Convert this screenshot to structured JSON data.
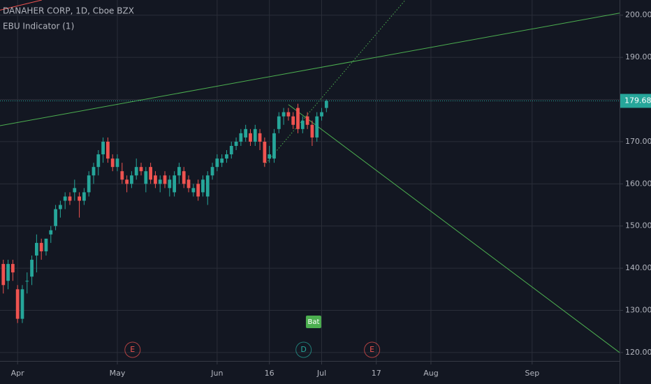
{
  "chart_data": {
    "type": "candlestick",
    "title": "DANAHER CORP, 1D, Cboe BZX",
    "subtitle": "EBU Indicator (1)",
    "up_color": "#26a69a",
    "down_color": "#ef5350",
    "grid": true,
    "ylim": [
      118.0,
      203.6
    ],
    "yticks": [
      {
        "value": 120,
        "label": "120.00"
      },
      {
        "value": 130,
        "label": "130.00"
      },
      {
        "value": 140,
        "label": "140.00"
      },
      {
        "value": 150,
        "label": "150.00"
      },
      {
        "value": 160,
        "label": "160.00"
      },
      {
        "value": 170,
        "label": "170.00"
      },
      {
        "value": 180,
        "label": "180.00"
      },
      {
        "value": 190,
        "label": "190.00"
      },
      {
        "value": 200,
        "label": "200.00"
      }
    ],
    "xlim": [
      -0.7,
      129.7
    ],
    "xticks": [
      {
        "value": 3,
        "label": "Apr"
      },
      {
        "value": 24,
        "label": "May"
      },
      {
        "value": 45,
        "label": "Jun"
      },
      {
        "value": 56,
        "label": "16"
      },
      {
        "value": 67,
        "label": "Jul"
      },
      {
        "value": 78.5,
        "label": "17"
      },
      {
        "value": 90,
        "label": "Aug"
      },
      {
        "value": 111.3,
        "label": "Sep"
      }
    ],
    "open": [
      141,
      137,
      141,
      135,
      128,
      137,
      138,
      143,
      146,
      144,
      148,
      150,
      154,
      156,
      157,
      158,
      157,
      156,
      158,
      162,
      164,
      167,
      170,
      166,
      164,
      163,
      161,
      160,
      162,
      164,
      160,
      164,
      162,
      160,
      162,
      159,
      158,
      162,
      163,
      161,
      158,
      160,
      158,
      157,
      162,
      164,
      165,
      166,
      167,
      169,
      170,
      171,
      172,
      170,
      172,
      170,
      166,
      166,
      173,
      176,
      177,
      176,
      178,
      173,
      176,
      174,
      171,
      176,
      178
    ],
    "high": [
      142,
      142,
      142,
      136,
      136,
      139,
      143,
      148,
      147,
      147,
      150,
      155,
      156,
      158,
      158,
      161,
      158,
      159,
      163,
      165,
      168,
      171,
      171,
      167,
      167,
      165,
      162,
      163,
      166,
      165,
      164,
      165,
      163,
      162,
      163,
      162,
      163,
      165,
      164,
      162,
      160,
      161,
      162,
      163,
      165,
      167,
      167,
      168,
      170,
      171,
      173,
      174,
      173,
      174,
      173,
      171,
      169,
      173,
      177,
      178,
      178,
      177,
      179,
      176,
      177,
      175,
      177,
      178,
      180
    ],
    "low": [
      134,
      135,
      137,
      127,
      127,
      134,
      136,
      139,
      142,
      143,
      146,
      149,
      152,
      154,
      155,
      156,
      152,
      155,
      157,
      160,
      162,
      165,
      165,
      163,
      163,
      160,
      158,
      159,
      161,
      162,
      158,
      160,
      159,
      158,
      159,
      157,
      157,
      160,
      159,
      158,
      157,
      156,
      157,
      155,
      161,
      163,
      164,
      165,
      166,
      168,
      169,
      170,
      169,
      169,
      168,
      164,
      165,
      165,
      172,
      174,
      175,
      173,
      172,
      172,
      173,
      169,
      170,
      175,
      177
    ],
    "close": [
      136,
      141,
      139,
      128,
      135,
      137,
      142,
      146,
      144,
      147,
      149,
      154,
      155,
      157,
      156,
      159,
      156,
      158,
      162,
      164,
      167,
      170,
      166,
      164,
      166,
      161,
      160,
      162,
      164,
      163,
      163,
      161,
      160,
      161,
      160,
      161,
      162,
      164,
      160,
      159,
      159,
      157,
      161,
      162,
      164,
      166,
      166,
      167,
      169,
      170,
      172,
      173,
      170,
      173,
      170,
      165,
      167,
      172,
      176,
      177,
      176,
      174,
      173,
      175,
      174,
      171,
      176,
      177,
      179.68
    ],
    "trend_lines": [
      {
        "color": "#4caf50",
        "x": [
          -0.7,
          129.7
        ],
        "y": [
          173.8,
          200.5
        ]
      },
      {
        "color": "#4caf50",
        "x": [
          60,
          129.7
        ],
        "y": [
          178.8,
          120
        ]
      },
      {
        "color": "#4caf50",
        "dotted": true,
        "x": [
          54.9,
          84.6
        ],
        "y": [
          164.4,
          203.6
        ]
      },
      {
        "color": "#ef5350",
        "x": [
          -0.7,
          8.1
        ],
        "y": [
          201.2,
          203.6
        ]
      }
    ],
    "events": [
      {
        "label": "E",
        "x": 27.2,
        "color": "#ef5350"
      },
      {
        "label": "D",
        "x": 63.2,
        "color": "#26a69a"
      },
      {
        "label": "E",
        "x": 77.6,
        "color": "#ef5350"
      }
    ],
    "badge": {
      "label": "Bat",
      "x": 65.3,
      "color": "#4caf50"
    }
  }
}
